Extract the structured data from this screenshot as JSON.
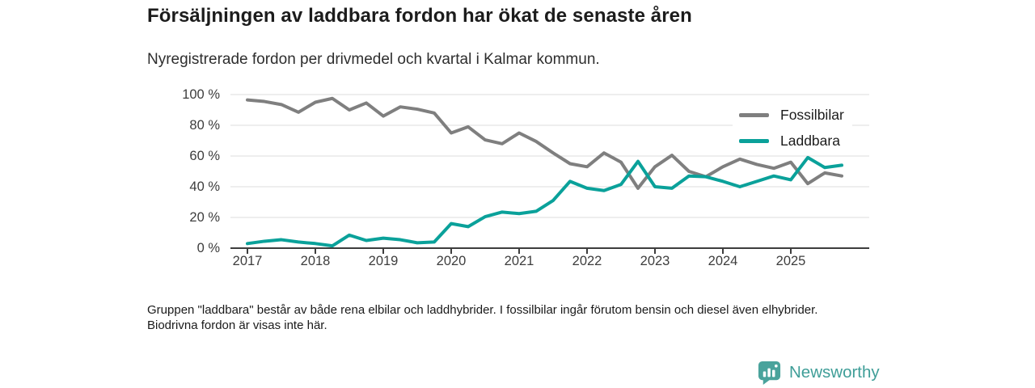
{
  "header": {
    "title": "Försäljningen av laddbara fordon har ökat de senaste åren",
    "subtitle": "Nyregistrerade fordon per drivmedel och kvartal i Kalmar kommun."
  },
  "chart_data": {
    "type": "line",
    "unit": "%",
    "x_start": "2017-Q1",
    "x_interval": "quarter",
    "x_tick_labels": [
      "2017",
      "2018",
      "2019",
      "2020",
      "2021",
      "2022",
      "2023",
      "2024",
      "2025"
    ],
    "y_ticks": [
      {
        "label": "0 %",
        "value": 0
      },
      {
        "label": "20 %",
        "value": 20
      },
      {
        "label": "40 %",
        "value": 40
      },
      {
        "label": "60 %",
        "value": 60
      },
      {
        "label": "80 %",
        "value": 80
      },
      {
        "label": "100 %",
        "value": 100
      }
    ],
    "ylim": [
      0,
      100
    ],
    "grid": true,
    "legend_position": "top-right",
    "series": [
      {
        "name": "Fossilbilar",
        "color": "#7f7f7f",
        "values": [
          96.5,
          95.5,
          93.5,
          88.5,
          95,
          97.5,
          90,
          94.5,
          86,
          92,
          90.5,
          88,
          75,
          79,
          70.5,
          68,
          75,
          69.5,
          62,
          55,
          53,
          62,
          56,
          39,
          53,
          60.5,
          50,
          46.5,
          53,
          58,
          54.5,
          52,
          56,
          42,
          49,
          47
        ]
      },
      {
        "name": "Laddbara",
        "color": "#0aa19a",
        "values": [
          3,
          4.5,
          5.5,
          4,
          3,
          1.5,
          8.5,
          5,
          6.5,
          5.5,
          3.5,
          4,
          16,
          14,
          20.5,
          23.5,
          22.5,
          24,
          31,
          43.5,
          39,
          37.5,
          41.5,
          56.5,
          40,
          39,
          47,
          46.5,
          43.5,
          40,
          43.5,
          47,
          44.5,
          59,
          52.5,
          54
        ]
      }
    ]
  },
  "footer": {
    "note": "Gruppen \"laddbara\" består av både rena elbilar och laddhybrider. I fossilbilar ingår förutom bensin och diesel även elhybrider. Biodrivna fordon är visas inte här."
  },
  "branding": {
    "logo_text": "Newsworthy",
    "logo_color": "#3f9e98",
    "logo_icon": "bar-chart-pin-icon"
  }
}
